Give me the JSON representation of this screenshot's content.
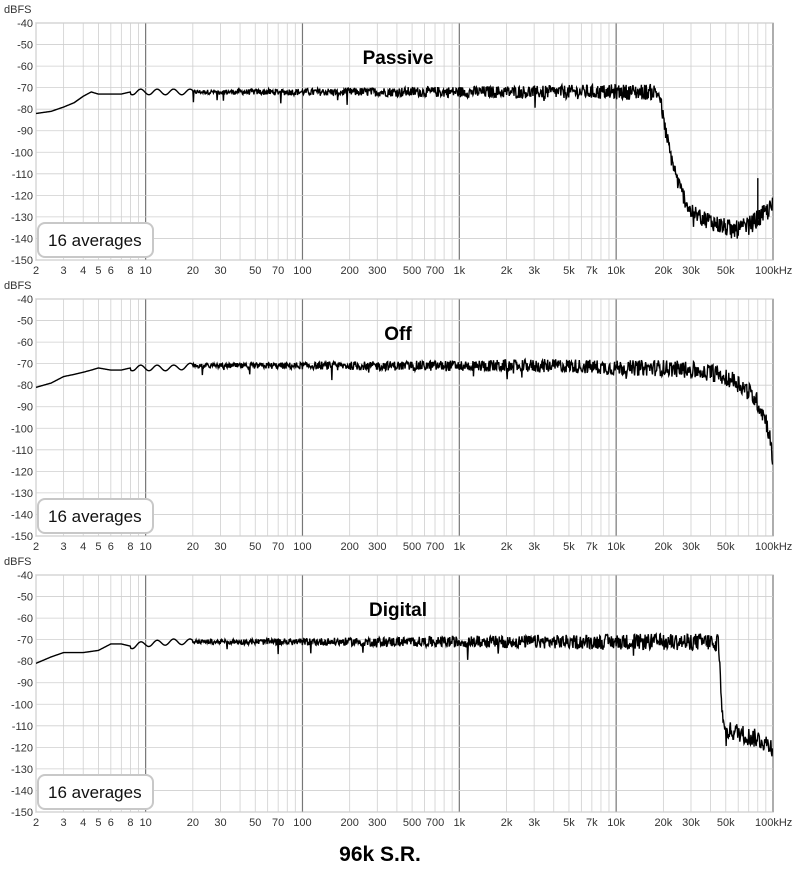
{
  "caption": "96k S.R.",
  "chart_data": [
    {
      "type": "line",
      "title": "Passive",
      "ylabel": "dBFS",
      "xscale": "log",
      "xlim": [
        2,
        100000
      ],
      "ylim": [
        -150,
        -40
      ],
      "grid": true,
      "yticks": [
        "-40",
        "-50",
        "-60",
        "-70",
        "-80",
        "-90",
        "-100",
        "-110",
        "-120",
        "-130",
        "-140",
        "-150"
      ],
      "xtick_labels": [
        "2",
        "3",
        "4",
        "5",
        "6",
        "8",
        "10",
        "20",
        "30",
        "50",
        "70",
        "100",
        "200",
        "300",
        "500",
        "700",
        "1k",
        "2k",
        "3k",
        "5k",
        "7k",
        "10k",
        "20k",
        "30k",
        "50k",
        "100kHz"
      ],
      "annotation": "16 averages",
      "series": [
        {
          "x": [
            2,
            2.5,
            3,
            3.5,
            4,
            4.5,
            5,
            6,
            7,
            8,
            10,
            12,
            15,
            20,
            30,
            50,
            100,
            200,
            500,
            1000,
            2000,
            5000,
            10000,
            15000,
            18000,
            19000,
            20000,
            22000,
            25000,
            30000,
            40000,
            50000,
            60000,
            70000,
            80000,
            90000,
            100000
          ],
          "y": [
            -82,
            -81,
            -79,
            -77,
            -74,
            -72,
            -73,
            -73,
            -73,
            -72,
            -72,
            -72,
            -72,
            -72,
            -72,
            -72,
            -72,
            -72,
            -72,
            -72,
            -72,
            -72,
            -72,
            -72,
            -72,
            -74,
            -85,
            -100,
            -115,
            -128,
            -132,
            -135,
            -136,
            -134,
            -131,
            -128,
            -125
          ]
        }
      ],
      "noise_band": {
        "start": 20,
        "end": 100000
      },
      "spike": {
        "x": 80000,
        "y": -112
      }
    },
    {
      "type": "line",
      "title": "Off",
      "ylabel": "dBFS",
      "xscale": "log",
      "xlim": [
        2,
        100000
      ],
      "ylim": [
        -150,
        -40
      ],
      "grid": true,
      "yticks": [
        "-40",
        "-50",
        "-60",
        "-70",
        "-80",
        "-90",
        "-100",
        "-110",
        "-120",
        "-130",
        "-140",
        "-150"
      ],
      "xtick_labels": [
        "2",
        "3",
        "4",
        "5",
        "6",
        "8",
        "10",
        "20",
        "30",
        "50",
        "70",
        "100",
        "200",
        "300",
        "500",
        "700",
        "1k",
        "2k",
        "3k",
        "5k",
        "7k",
        "10k",
        "20k",
        "30k",
        "50k",
        "100kHz"
      ],
      "annotation": "16 averages",
      "series": [
        {
          "x": [
            2,
            2.5,
            3,
            3.5,
            4,
            4.5,
            5,
            6,
            7,
            8,
            10,
            15,
            20,
            50,
            100,
            200,
            500,
            1000,
            2000,
            5000,
            10000,
            20000,
            30000,
            40000,
            50000,
            60000,
            70000,
            80000,
            90000,
            95000,
            100000
          ],
          "y": [
            -81,
            -79,
            -76,
            -75,
            -74,
            -73,
            -72,
            -73,
            -73,
            -72,
            -72,
            -72,
            -71,
            -71,
            -71,
            -71,
            -71,
            -71,
            -71,
            -71,
            -72,
            -72,
            -73,
            -74,
            -76,
            -79,
            -83,
            -88,
            -96,
            -103,
            -117
          ]
        }
      ],
      "noise_band": {
        "start": 20,
        "end": 100000
      }
    },
    {
      "type": "line",
      "title": "Digital",
      "ylabel": "dBFS",
      "xscale": "log",
      "xlim": [
        2,
        100000
      ],
      "ylim": [
        -150,
        -40
      ],
      "grid": true,
      "yticks": [
        "-40",
        "-50",
        "-60",
        "-70",
        "-80",
        "-90",
        "-100",
        "-110",
        "-120",
        "-130",
        "-140",
        "-150"
      ],
      "xtick_labels": [
        "2",
        "3",
        "4",
        "5",
        "6",
        "8",
        "10",
        "20",
        "30",
        "50",
        "70",
        "100",
        "200",
        "300",
        "500",
        "700",
        "1k",
        "2k",
        "3k",
        "5k",
        "7k",
        "10k",
        "20k",
        "30k",
        "50k",
        "100kHz"
      ],
      "annotation": "16 averages",
      "series": [
        {
          "x": [
            2,
            2.5,
            3,
            4,
            5,
            6,
            7,
            8,
            10,
            15,
            20,
            50,
            100,
            200,
            500,
            1000,
            2000,
            5000,
            10000,
            20000,
            40000,
            45000,
            46000,
            47000,
            48000,
            50000,
            60000,
            70000,
            80000,
            90000,
            100000
          ],
          "y": [
            -81,
            -78,
            -76,
            -76,
            -75,
            -72,
            -72,
            -73,
            -72,
            -71,
            -71,
            -71,
            -71,
            -71,
            -71,
            -71,
            -71,
            -71,
            -71,
            -71,
            -71,
            -72,
            -80,
            -100,
            -110,
            -112,
            -113,
            -115,
            -116,
            -118,
            -120
          ]
        }
      ],
      "noise_band": {
        "start": 20,
        "end": 100000
      }
    }
  ]
}
